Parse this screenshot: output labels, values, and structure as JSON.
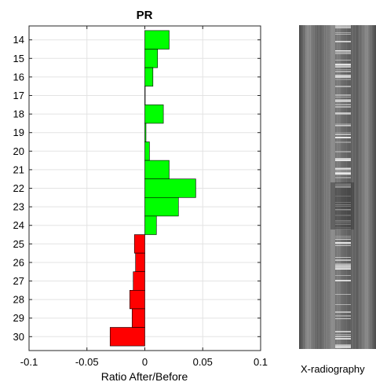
{
  "chart_data": {
    "type": "bar",
    "orientation": "horizontal",
    "title": "PR",
    "xlabel": "Ratio After/Before",
    "ylabel": "",
    "categories": [
      "14",
      "15",
      "16",
      "17",
      "18",
      "19",
      "20",
      "21",
      "22",
      "23",
      "24",
      "25",
      "26",
      "27",
      "28",
      "29",
      "30"
    ],
    "values": [
      0.021,
      0.011,
      0.007,
      0.0,
      0.016,
      0.001,
      0.004,
      0.021,
      0.044,
      0.029,
      0.01,
      -0.009,
      -0.008,
      -0.01,
      -0.013,
      -0.011,
      -0.03
    ],
    "xlim": [
      -0.1,
      0.1
    ],
    "xticks": [
      "-0.1",
      "-0.05",
      "0",
      "0.05",
      "0.1"
    ],
    "grid": true,
    "colors": {
      "positive": "#00ff00",
      "negative": "#ff0000",
      "edge": "#000000"
    }
  },
  "image_panel": {
    "caption": "X-radiography"
  }
}
